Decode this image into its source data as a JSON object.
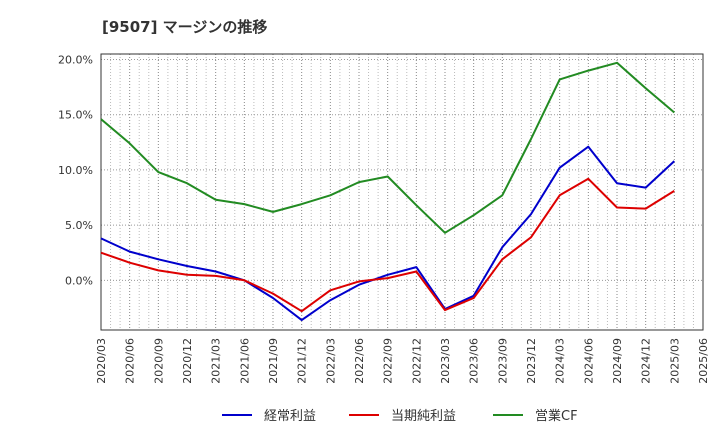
{
  "chart_data": {
    "type": "line",
    "title": "[9507]  マージンの推移",
    "xlabel": "",
    "ylabel": "",
    "x": [
      "2020/03",
      "2020/06",
      "2020/09",
      "2020/12",
      "2021/03",
      "2021/06",
      "2021/09",
      "2021/12",
      "2022/03",
      "2022/06",
      "2022/09",
      "2022/12",
      "2023/03",
      "2023/06",
      "2023/09",
      "2023/12",
      "2024/03",
      "2024/06",
      "2024/09",
      "2024/12",
      "2025/03",
      "2025/06"
    ],
    "yticks": [
      0,
      5,
      10,
      15,
      20
    ],
    "ytick_labels": [
      "0.0%",
      "5.0%",
      "10.0%",
      "15.0%",
      "20.0%"
    ],
    "ylim": [
      -4.5,
      20.5
    ],
    "grid": true,
    "legend_position": "bottom",
    "series": [
      {
        "name": "経常利益",
        "color": "#0000cc",
        "values": [
          3.8,
          2.6,
          1.9,
          1.3,
          0.8,
          0.0,
          -1.6,
          -3.6,
          -1.8,
          -0.4,
          0.5,
          1.2,
          -2.6,
          -1.4,
          3.0,
          6.0,
          10.2,
          12.1,
          8.8,
          8.4,
          10.8,
          null
        ]
      },
      {
        "name": "当期純利益",
        "color": "#dd0000",
        "values": [
          2.5,
          1.6,
          0.9,
          0.5,
          0.4,
          0.0,
          -1.2,
          -2.8,
          -0.9,
          -0.1,
          0.2,
          0.8,
          -2.7,
          -1.6,
          1.9,
          3.9,
          7.7,
          9.2,
          6.6,
          6.5,
          8.1,
          null
        ]
      },
      {
        "name": "営業CF",
        "color": "#228b22",
        "values": [
          14.6,
          12.4,
          9.8,
          8.8,
          7.3,
          6.9,
          6.2,
          6.9,
          7.7,
          8.9,
          9.4,
          6.8,
          4.3,
          5.9,
          7.7,
          12.8,
          18.2,
          19.0,
          19.7,
          17.4,
          15.2,
          null
        ]
      }
    ]
  }
}
